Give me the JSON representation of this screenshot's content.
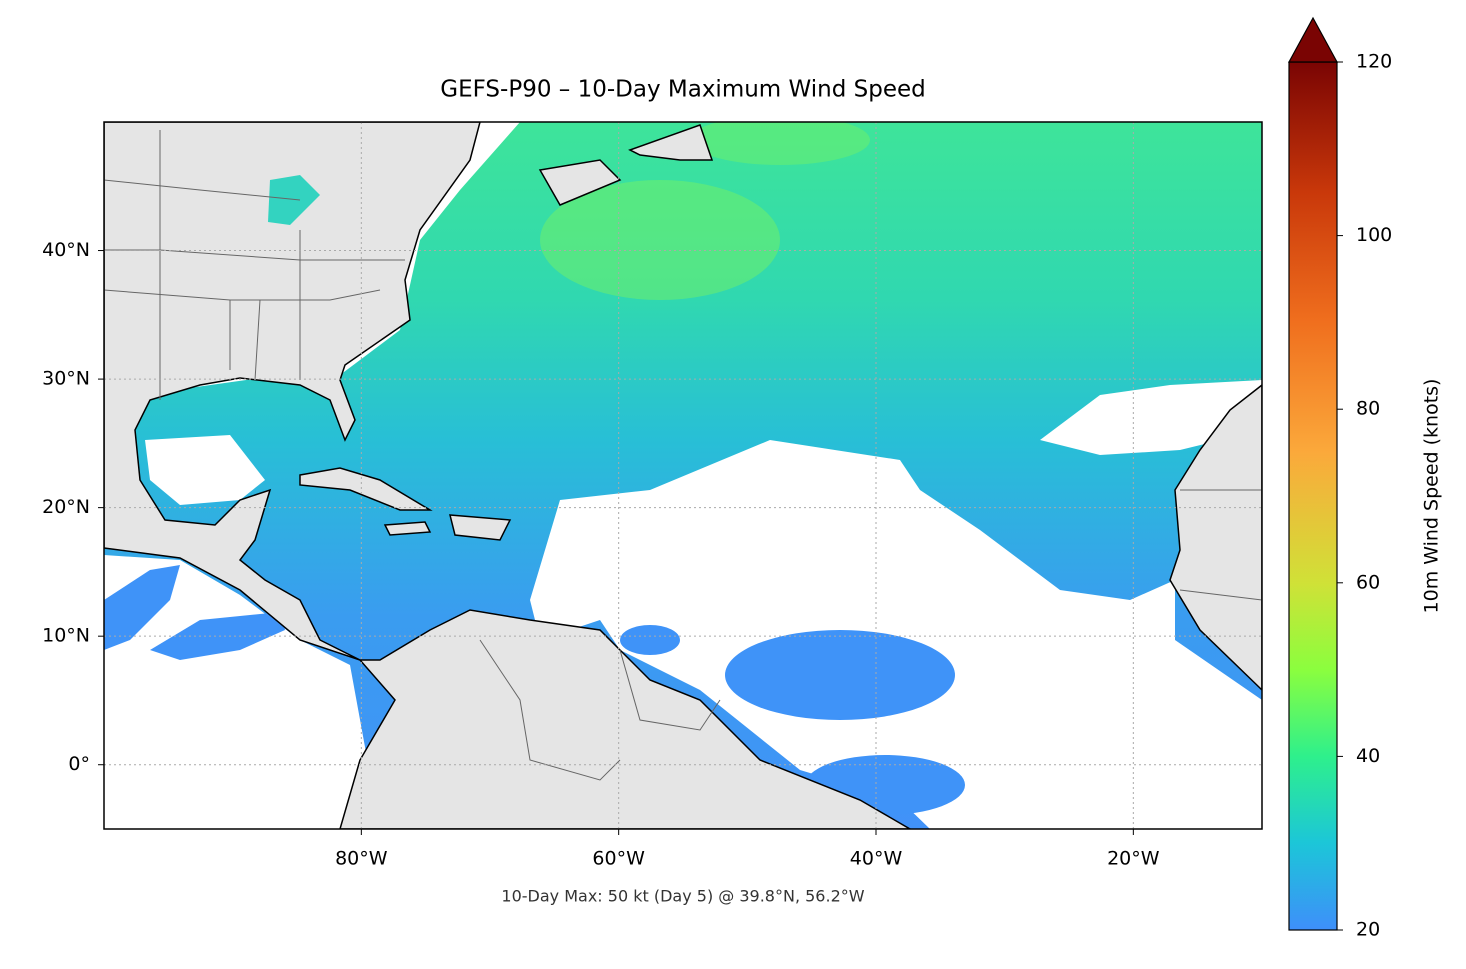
{
  "chart_data": {
    "type": "map",
    "title": "GEFS-P90 – 10-Day Maximum Wind Speed",
    "annotation": "10-Day Max: 50 kt (Day 5) @ 39.8°N, 56.2°W",
    "xlim": [
      -100,
      -10
    ],
    "ylim": [
      -5,
      50
    ],
    "xticks": [
      {
        "value": -80,
        "label": "80°W"
      },
      {
        "value": -60,
        "label": "60°W"
      },
      {
        "value": -40,
        "label": "40°W"
      },
      {
        "value": -20,
        "label": "20°W"
      }
    ],
    "yticks": [
      {
        "value": 0,
        "label": "0°"
      },
      {
        "value": 10,
        "label": "10°N"
      },
      {
        "value": 20,
        "label": "20°N"
      },
      {
        "value": 30,
        "label": "30°N"
      },
      {
        "value": 40,
        "label": "40°N"
      }
    ],
    "grid": true,
    "colorbar": {
      "label": "10m Wind Speed (knots)",
      "lim": [
        20,
        120
      ],
      "ticks": [
        20,
        40,
        60,
        80,
        100,
        120
      ],
      "colormap": "turbo",
      "extend": "max"
    }
  }
}
